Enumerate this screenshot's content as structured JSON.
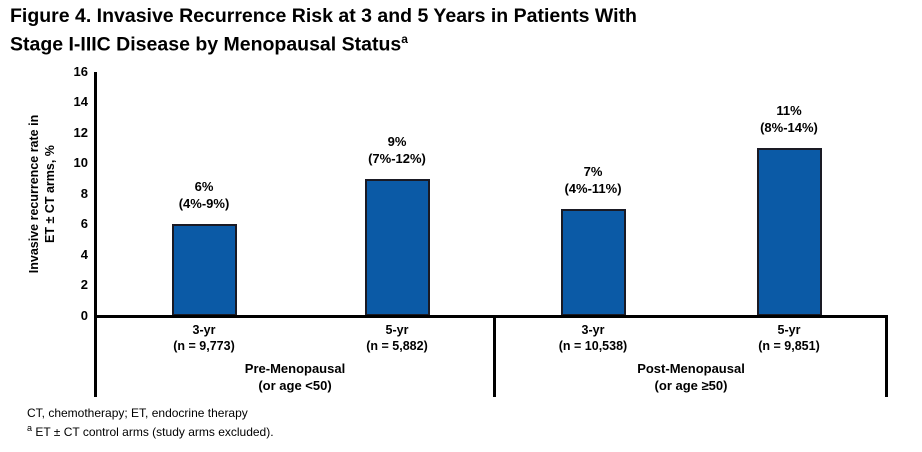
{
  "title": {
    "line1": "Figure 4. Invasive Recurrence Risk at 3 and 5 Years in Patients With",
    "line2": "Stage I-IIIC Disease by Menopausal Status",
    "superscript": "a"
  },
  "chart_data": {
    "type": "bar",
    "title": "Figure 4. Invasive Recurrence Risk at 3 and 5 Years in Patients With Stage I-IIIC Disease by Menopausal Status",
    "ylabel": "Invasive recurrence rate in ET ± CT arms, %",
    "ylabel_line1": "Invasive recurrence rate in",
    "ylabel_line2": "ET ± CT arms, %",
    "ylim": [
      0,
      16
    ],
    "ytick_interval": 2,
    "yticks": [
      "16",
      "14",
      "12",
      "10",
      "8",
      "6",
      "4",
      "2",
      "0"
    ],
    "grid": false,
    "legend": "none",
    "bar_color": "#0B5AA6",
    "bar_border_color": "#1A1A24",
    "groups": [
      {
        "label_line1": "Pre-Menopausal",
        "label_line2": "(or age <50)",
        "bars": [
          {
            "period": "3-yr",
            "n_label": "(n = 9,773)",
            "n": 9773,
            "value": 6,
            "value_label": "6%",
            "ci_label": "(4%-9%)"
          },
          {
            "period": "5-yr",
            "n_label": "(n = 5,882)",
            "n": 5882,
            "value": 9,
            "value_label": "9%",
            "ci_label": "(7%-12%)"
          }
        ]
      },
      {
        "label_line1": "Post-Menopausal",
        "label_line2": "(or age ≥50)",
        "bars": [
          {
            "period": "3-yr",
            "n_label": "(n = 10,538)",
            "n": 10538,
            "value": 7,
            "value_label": "7%",
            "ci_label": "(4%-11%)"
          },
          {
            "period": "5-yr",
            "n_label": "(n = 9,851)",
            "n": 9851,
            "value": 11,
            "value_label": "11%",
            "ci_label": "(8%-14%)"
          }
        ]
      }
    ]
  },
  "footnotes": {
    "abbreviations": "CT, chemotherapy; ET, endocrine therapy",
    "note_superscript": "a",
    "note_text": " ET ± CT control arms (study arms excluded)."
  }
}
